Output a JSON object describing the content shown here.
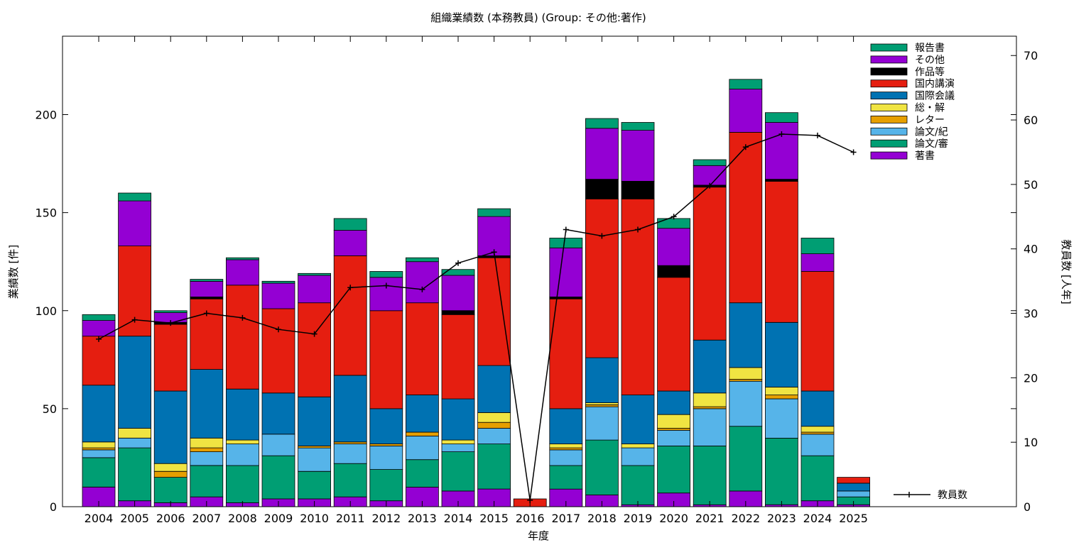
{
  "chart_data": {
    "type": "bar",
    "stacked": true,
    "title": "組織業績数 (本務教員) (Group: その他:著作)",
    "xlabel": "年度",
    "ylabel": "業績数 [件]",
    "y2label": "教員数 [人年]",
    "ylim": [
      0,
      240
    ],
    "y2lim": [
      0,
      73
    ],
    "yticks": [
      0,
      50,
      100,
      150,
      200
    ],
    "y2ticks": [
      0,
      10,
      20,
      30,
      40,
      50,
      60,
      70
    ],
    "grid": false,
    "legend_position": "top-right",
    "categories": [
      "2004",
      "2005",
      "2006",
      "2007",
      "2008",
      "2009",
      "2010",
      "2011",
      "2012",
      "2013",
      "2014",
      "2015",
      "2016",
      "2017",
      "2018",
      "2019",
      "2020",
      "2021",
      "2022",
      "2023",
      "2024",
      "2025"
    ],
    "series": [
      {
        "name": "著書",
        "color": "#9400d3",
        "values": [
          10,
          3,
          2,
          5,
          2,
          4,
          4,
          5,
          3,
          10,
          8,
          9,
          0,
          9,
          6,
          1,
          7,
          1,
          8,
          1,
          3,
          1
        ]
      },
      {
        "name": "論文/審",
        "color": "#009e73",
        "values": [
          15,
          27,
          13,
          16,
          19,
          22,
          14,
          17,
          16,
          14,
          20,
          23,
          0,
          12,
          28,
          20,
          24,
          30,
          33,
          34,
          23,
          4
        ]
      },
      {
        "name": "論文/紀",
        "color": "#56b4e9",
        "values": [
          4,
          5,
          0,
          7,
          11,
          11,
          12,
          10,
          12,
          12,
          4,
          8,
          0,
          8,
          17,
          9,
          8,
          19,
          23,
          20,
          11,
          3
        ]
      },
      {
        "name": "レター",
        "color": "#e69f00",
        "values": [
          1,
          0,
          3,
          2,
          0,
          0,
          1,
          1,
          1,
          2,
          0,
          3,
          0,
          1,
          1,
          0,
          1,
          1,
          1,
          2,
          1,
          0
        ]
      },
      {
        "name": "総・解",
        "color": "#f0e442",
        "values": [
          3,
          5,
          4,
          5,
          2,
          0,
          0,
          0,
          0,
          0,
          2,
          5,
          0,
          2,
          1,
          2,
          7,
          7,
          6,
          4,
          3,
          0
        ]
      },
      {
        "name": "国際会議",
        "color": "#0072b2",
        "values": [
          29,
          47,
          37,
          35,
          26,
          21,
          25,
          34,
          18,
          19,
          21,
          24,
          0,
          18,
          23,
          25,
          12,
          27,
          33,
          33,
          18,
          4
        ]
      },
      {
        "name": "国内講演",
        "color": "#e51e10",
        "values": [
          25,
          46,
          34,
          36,
          53,
          43,
          48,
          61,
          50,
          47,
          43,
          55,
          4,
          56,
          81,
          100,
          58,
          78,
          87,
          72,
          61,
          3
        ]
      },
      {
        "name": "作品等",
        "color": "#000000",
        "values": [
          0,
          0,
          1,
          1,
          0,
          0,
          0,
          0,
          0,
          0,
          2,
          1,
          0,
          1,
          10,
          9,
          6,
          1,
          0,
          1,
          0,
          0
        ]
      },
      {
        "name": "その他",
        "color": "#9400d3",
        "values": [
          8,
          23,
          5,
          8,
          13,
          13,
          14,
          13,
          17,
          21,
          18,
          20,
          0,
          25,
          26,
          26,
          19,
          10,
          22,
          29,
          9,
          0
        ]
      },
      {
        "name": "報告書",
        "color": "#009e73",
        "values": [
          3,
          4,
          1,
          1,
          1,
          1,
          1,
          6,
          3,
          2,
          3,
          4,
          0,
          5,
          5,
          4,
          5,
          3,
          5,
          5,
          8,
          0
        ]
      }
    ],
    "line_series": {
      "name": "教員数",
      "color": "#000000",
      "axis": "y2",
      "values": [
        26.0,
        29.0,
        28.5,
        30.0,
        29.3,
        27.5,
        26.8,
        34.0,
        34.3,
        33.7,
        37.8,
        39.5,
        1.0,
        43.0,
        42.0,
        43.0,
        45.0,
        49.8,
        55.8,
        57.8,
        57.6,
        55.0
      ]
    }
  }
}
